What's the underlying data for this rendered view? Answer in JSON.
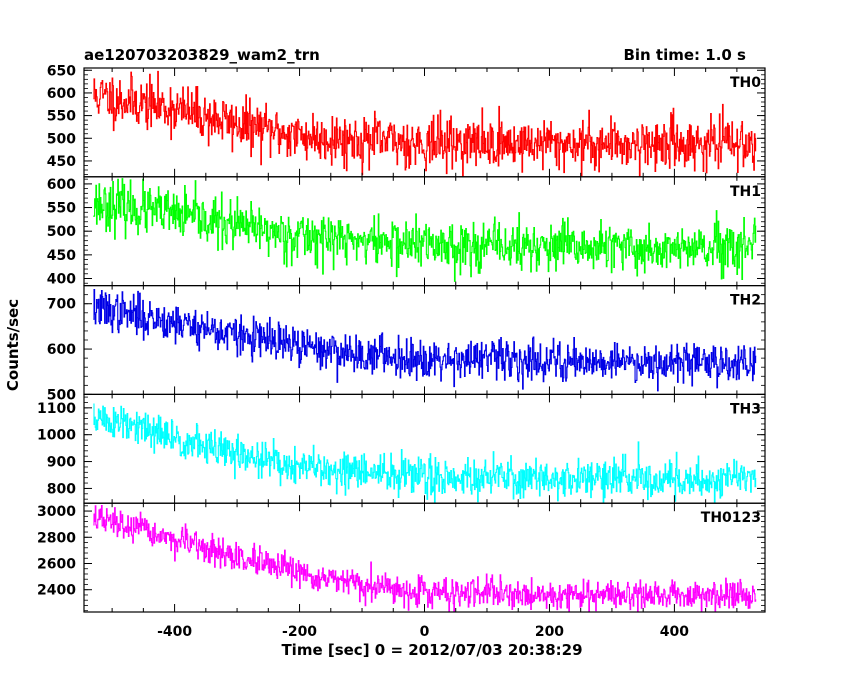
{
  "chart_data": {
    "type": "line",
    "title": "ae120703203829_wam2_trn",
    "subtitle": "Bin time: 1.0 s",
    "xlabel": "Time [sec] 0 = 2012/07/03 20:38:29",
    "ylabel": "Counts/sec",
    "xlim": [
      -545,
      545
    ],
    "x_ticks": [
      -400,
      -200,
      0,
      200,
      400
    ],
    "x_range": [
      -530,
      530
    ],
    "x_step": 1,
    "grid": false,
    "panels": [
      {
        "name": "TH0",
        "color": "#ff0000",
        "ylim": [
          415,
          655
        ],
        "y_ticks": [
          450,
          500,
          550,
          600,
          650
        ],
        "trend": [
          [
            -530,
            595
          ],
          [
            -400,
            565
          ],
          [
            -300,
            530
          ],
          [
            -200,
            505
          ],
          [
            -100,
            495
          ],
          [
            0,
            490
          ],
          [
            200,
            488
          ],
          [
            400,
            488
          ],
          [
            530,
            488
          ]
        ],
        "noise": 28,
        "seed": 11
      },
      {
        "name": "TH1",
        "color": "#00ff00",
        "ylim": [
          385,
          615
        ],
        "y_ticks": [
          400,
          450,
          500,
          550,
          600
        ],
        "trend": [
          [
            -530,
            560
          ],
          [
            -400,
            535
          ],
          [
            -300,
            510
          ],
          [
            -200,
            490
          ],
          [
            -100,
            480
          ],
          [
            0,
            472
          ],
          [
            200,
            466
          ],
          [
            400,
            462
          ],
          [
            530,
            460
          ]
        ],
        "noise": 26,
        "seed": 23
      },
      {
        "name": "TH2",
        "color": "#0000e6",
        "ylim": [
          500,
          740
        ],
        "y_ticks": [
          500,
          600,
          700
        ],
        "trend": [
          [
            -530,
            690
          ],
          [
            -400,
            660
          ],
          [
            -300,
            630
          ],
          [
            -200,
            605
          ],
          [
            -100,
            588
          ],
          [
            0,
            580
          ],
          [
            200,
            575
          ],
          [
            400,
            572
          ],
          [
            530,
            570
          ]
        ],
        "noise": 22,
        "seed": 37
      },
      {
        "name": "TH3",
        "color": "#00ffff",
        "ylim": [
          745,
          1150
        ],
        "y_ticks": [
          800,
          900,
          1000,
          1100
        ],
        "trend": [
          [
            -530,
            1065
          ],
          [
            -400,
            985
          ],
          [
            -300,
            925
          ],
          [
            -200,
            880
          ],
          [
            -100,
            858
          ],
          [
            0,
            845
          ],
          [
            200,
            838
          ],
          [
            400,
            835
          ],
          [
            530,
            835
          ]
        ],
        "noise": 36,
        "seed": 51
      },
      {
        "name": "TH0123",
        "color": "#ff00ff",
        "ylim": [
          2230,
          3060
        ],
        "y_ticks": [
          2400,
          2600,
          2800,
          3000
        ],
        "trend": [
          [
            -530,
            2950
          ],
          [
            -400,
            2780
          ],
          [
            -300,
            2640
          ],
          [
            -200,
            2520
          ],
          [
            -100,
            2430
          ],
          [
            0,
            2380
          ],
          [
            200,
            2360
          ],
          [
            400,
            2360
          ],
          [
            530,
            2360
          ]
        ],
        "noise": 55,
        "seed": 67
      }
    ]
  }
}
